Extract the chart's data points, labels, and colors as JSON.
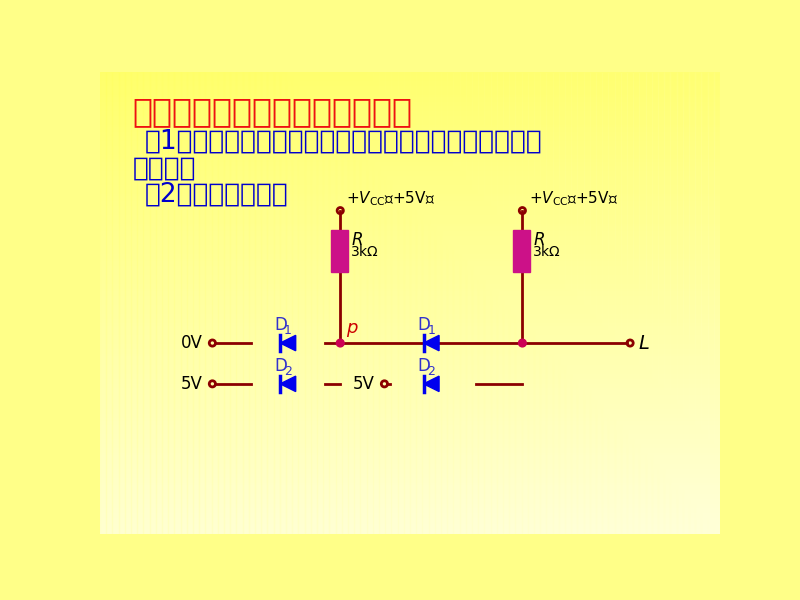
{
  "title": "二极管与门和或门电路的缺点：",
  "title_color": "#EE1111",
  "text_color": "#0000CC",
  "text1": "（1）在多个门串接使用时，会出现低电平偏离标准数值",
  "text2": "的情况。",
  "text3": "（2）负载能力差。",
  "wire_color": "#8B0000",
  "diode_color": "#0000EE",
  "resistor_color": "#CC1188",
  "label_color": "#3333CC",
  "p_label_color": "#CC0000",
  "node_color": "#CC0055",
  "font_size_title": 24,
  "font_size_text": 19,
  "font_size_small": 11,
  "font_size_label": 13
}
